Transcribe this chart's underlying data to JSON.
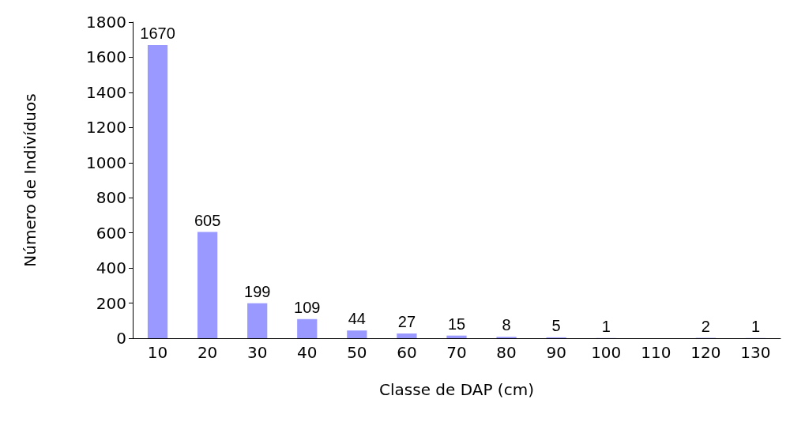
{
  "chart_data": {
    "type": "bar",
    "xlabel": "Classe de DAP (cm)",
    "ylabel": "Número de Indivíduos",
    "categories": [
      "10",
      "20",
      "30",
      "40",
      "50",
      "60",
      "70",
      "80",
      "90",
      "100",
      "110",
      "120",
      "130"
    ],
    "values": [
      1670,
      605,
      199,
      109,
      44,
      27,
      15,
      8,
      5,
      1,
      null,
      2,
      1
    ],
    "value_labels": [
      "1670",
      "605",
      "199",
      "109",
      "44",
      "27",
      "15",
      "8",
      "5",
      "1",
      null,
      "2",
      "1"
    ],
    "color": "#9999ff",
    "ylim": [
      0,
      1800
    ],
    "yticks": [
      0,
      200,
      400,
      600,
      800,
      1000,
      1200,
      1400,
      1600,
      1800
    ],
    "grid": false
  }
}
